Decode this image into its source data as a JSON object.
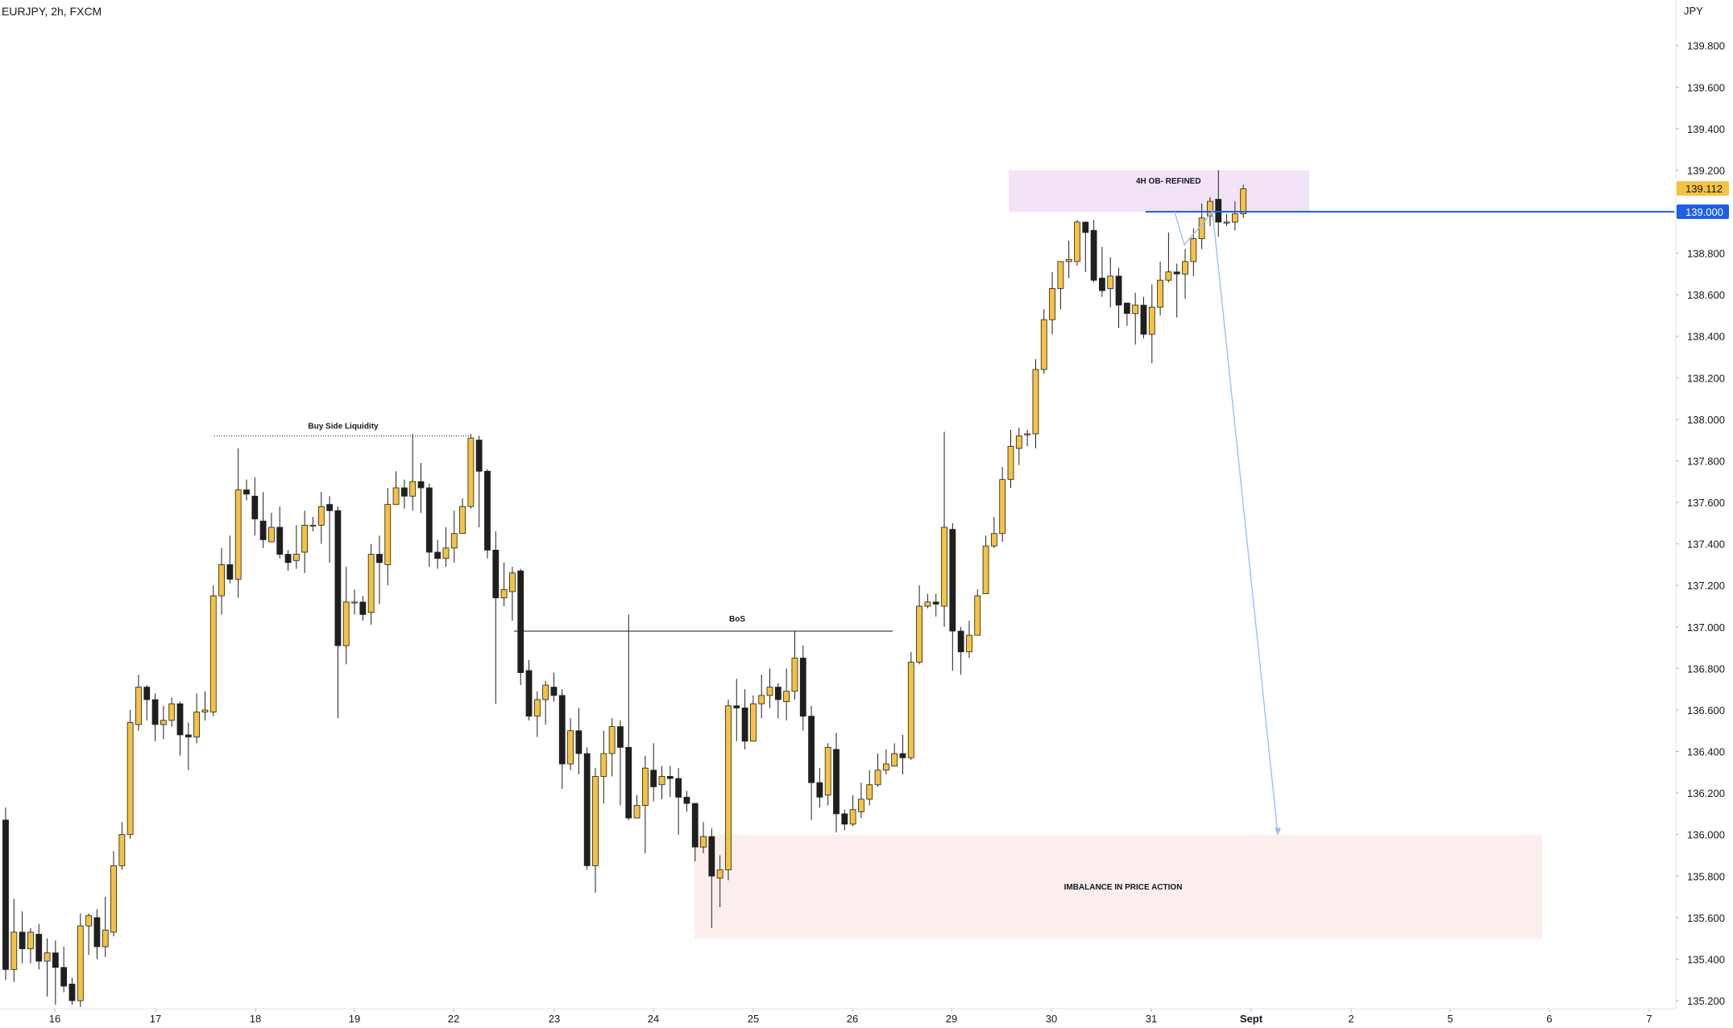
{
  "header": {
    "symbol_line": "EURJPY, 2h, FXCM"
  },
  "price_axis": {
    "currency": "JPY",
    "ticks": [
      "135.200",
      "135.400",
      "135.600",
      "135.800",
      "136.000",
      "136.200",
      "136.400",
      "136.600",
      "136.800",
      "137.000",
      "137.200",
      "137.400",
      "137.600",
      "137.800",
      "138.000",
      "138.200",
      "138.400",
      "138.600",
      "138.800",
      "139.000",
      "139.200",
      "139.400",
      "139.600",
      "139.800"
    ],
    "last_price_label": "139.112",
    "line_price_label": "139.000"
  },
  "time_axis": {
    "ticks": [
      "16",
      "17",
      "18",
      "19",
      "22",
      "23",
      "24",
      "25",
      "26",
      "29",
      "30",
      "31",
      "Sept",
      "2",
      "5",
      "6",
      "7"
    ],
    "bold": [
      "Sept"
    ]
  },
  "colors": {
    "up_candle": "#f5c242",
    "down_candle": "#1f1f1f",
    "wick": "#1f1f1f",
    "ob_zone": "#f3e3f7",
    "imbalance_zone": "#fdeeee",
    "blue_line": "#1e5fe6",
    "projection": "#9cc0f5",
    "last_price_bg": "#f5c242",
    "line_price_bg": "#1e5fe6"
  },
  "annotations": {
    "ob_label": "4H OB- REFINED",
    "imbalance_label": "IMBALANCE IN PRICE ACTION",
    "bos_label": "BoS",
    "bsl_label": "Buy Side Liquidity"
  },
  "chart_data": {
    "type": "candlestick",
    "symbol": "EURJPY",
    "timeframe": "2h",
    "source": "FXCM",
    "y_range": [
      135.15,
      140.02
    ],
    "x_ticks": [
      "16",
      "17",
      "18",
      "19",
      "22",
      "23",
      "24",
      "25",
      "26",
      "29",
      "30",
      "31",
      "Sept",
      "2",
      "5",
      "6",
      "7"
    ],
    "levels": {
      "bos": 136.98,
      "buy_side_liquidity": 137.92,
      "blue_line": 139.0
    },
    "zones": {
      "ob_4h_refined": [
        139.0,
        139.2
      ],
      "imbalance": [
        135.5,
        136.0
      ]
    },
    "projection_path": [
      139.0,
      138.84,
      139.0,
      136.0
    ],
    "candles": [
      [
        136.07,
        135.35,
        136.13,
        135.3
      ],
      [
        135.35,
        135.53,
        135.69,
        135.29
      ],
      [
        135.53,
        135.45,
        135.63,
        135.38
      ],
      [
        135.45,
        135.53,
        135.55,
        135.38
      ],
      [
        135.52,
        135.39,
        135.57,
        135.35
      ],
      [
        135.39,
        135.43,
        135.5,
        135.22
      ],
      [
        135.43,
        135.36,
        135.49,
        135.18
      ],
      [
        135.36,
        135.27,
        135.46,
        135.24
      ],
      [
        135.28,
        135.2,
        135.31,
        135.18
      ],
      [
        135.2,
        135.56,
        135.62,
        135.17
      ],
      [
        135.56,
        135.61,
        135.62,
        135.42
      ],
      [
        135.6,
        135.46,
        135.64,
        135.4
      ],
      [
        135.46,
        135.54,
        135.7,
        135.41
      ],
      [
        135.53,
        135.85,
        135.92,
        135.51
      ],
      [
        135.85,
        136.0,
        136.06,
        135.83
      ],
      [
        136.0,
        136.54,
        136.6,
        135.98
      ],
      [
        136.53,
        136.71,
        136.77,
        136.5
      ],
      [
        136.71,
        136.65,
        136.72,
        136.55
      ],
      [
        136.65,
        136.53,
        136.68,
        136.45
      ],
      [
        136.53,
        136.55,
        136.62,
        136.46
      ],
      [
        136.55,
        136.63,
        136.66,
        136.52
      ],
      [
        136.63,
        136.48,
        136.64,
        136.38
      ],
      [
        136.48,
        136.47,
        136.54,
        136.31
      ],
      [
        136.47,
        136.59,
        136.68,
        136.44
      ],
      [
        136.59,
        136.6,
        136.69,
        136.55
      ],
      [
        136.59,
        137.15,
        137.2,
        136.57
      ],
      [
        137.15,
        137.3,
        137.38,
        137.06
      ],
      [
        137.3,
        137.23,
        137.44,
        137.21
      ],
      [
        137.23,
        137.66,
        137.86,
        137.14
      ],
      [
        137.66,
        137.64,
        137.71,
        137.61
      ],
      [
        137.63,
        137.52,
        137.72,
        137.44
      ],
      [
        137.51,
        137.42,
        137.65,
        137.38
      ],
      [
        137.41,
        137.48,
        137.55,
        137.41
      ],
      [
        137.48,
        137.35,
        137.58,
        137.33
      ],
      [
        137.35,
        137.31,
        137.37,
        137.27
      ],
      [
        137.32,
        137.35,
        137.49,
        137.28
      ],
      [
        137.36,
        137.49,
        137.56,
        137.26
      ],
      [
        137.49,
        137.49,
        137.53,
        137.46
      ],
      [
        137.49,
        137.58,
        137.65,
        137.4
      ],
      [
        137.59,
        137.56,
        137.63,
        137.31
      ],
      [
        137.56,
        136.91,
        137.58,
        136.56
      ],
      [
        136.91,
        137.12,
        137.29,
        136.82
      ],
      [
        137.12,
        137.12,
        137.18,
        137.06
      ],
      [
        137.12,
        137.06,
        137.15,
        137.03
      ],
      [
        137.07,
        137.35,
        137.4,
        137.01
      ],
      [
        137.35,
        137.31,
        137.44,
        137.11
      ],
      [
        137.3,
        137.59,
        137.67,
        137.2
      ],
      [
        137.59,
        137.67,
        137.75,
        137.59
      ],
      [
        137.67,
        137.63,
        137.71,
        137.57
      ],
      [
        137.63,
        137.7,
        137.93,
        137.56
      ],
      [
        137.7,
        137.67,
        137.79,
        137.55
      ],
      [
        137.67,
        137.36,
        137.69,
        137.29
      ],
      [
        137.36,
        137.33,
        137.42,
        137.28
      ],
      [
        137.33,
        137.38,
        137.48,
        137.29
      ],
      [
        137.38,
        137.45,
        137.56,
        137.31
      ],
      [
        137.45,
        137.58,
        137.62,
        137.47
      ],
      [
        137.58,
        137.91,
        137.93,
        137.57
      ],
      [
        137.9,
        137.75,
        137.92,
        137.48
      ],
      [
        137.75,
        137.37,
        137.76,
        137.33
      ],
      [
        137.37,
        137.14,
        137.46,
        136.63
      ],
      [
        137.14,
        137.18,
        137.31,
        137.1
      ],
      [
        137.17,
        137.26,
        137.29,
        137.03
      ],
      [
        137.27,
        136.78,
        137.28,
        136.72
      ],
      [
        136.79,
        136.57,
        136.84,
        136.55
      ],
      [
        136.57,
        136.65,
        136.69,
        136.47
      ],
      [
        136.65,
        136.72,
        136.74,
        136.53
      ],
      [
        136.71,
        136.67,
        136.78,
        136.64
      ],
      [
        136.67,
        136.34,
        136.7,
        136.22
      ],
      [
        136.34,
        136.5,
        136.56,
        136.31
      ],
      [
        136.5,
        136.39,
        136.61,
        136.29
      ],
      [
        136.39,
        135.85,
        136.42,
        135.83
      ],
      [
        135.85,
        136.28,
        136.32,
        135.72
      ],
      [
        136.28,
        136.39,
        136.5,
        136.15
      ],
      [
        136.39,
        136.52,
        136.56,
        136.28
      ],
      [
        136.52,
        136.42,
        136.55,
        136.14
      ],
      [
        136.42,
        136.08,
        137.06,
        136.07
      ],
      [
        136.08,
        136.14,
        136.19,
        136.08
      ],
      [
        136.14,
        136.32,
        136.38,
        135.91
      ],
      [
        136.31,
        136.23,
        136.44,
        136.16
      ],
      [
        136.24,
        136.28,
        136.33,
        136.17
      ],
      [
        136.28,
        136.27,
        136.33,
        136.18
      ],
      [
        136.27,
        136.18,
        136.32,
        136.0
      ],
      [
        136.18,
        136.15,
        136.21,
        136.11
      ],
      [
        136.15,
        135.94,
        136.14,
        135.87
      ],
      [
        135.94,
        135.99,
        136.06,
        135.91
      ],
      [
        135.99,
        135.8,
        136.03,
        135.55
      ],
      [
        135.79,
        135.83,
        135.9,
        135.65
      ],
      [
        135.83,
        136.62,
        136.65,
        135.78
      ],
      [
        136.62,
        136.61,
        136.75,
        136.45
      ],
      [
        136.61,
        136.45,
        136.7,
        136.41
      ],
      [
        136.45,
        136.63,
        136.67,
        136.51
      ],
      [
        136.63,
        136.67,
        136.77,
        136.56
      ],
      [
        136.67,
        136.71,
        136.8,
        136.61
      ],
      [
        136.71,
        136.65,
        136.73,
        136.56
      ],
      [
        136.64,
        136.69,
        136.8,
        136.55
      ],
      [
        136.69,
        136.85,
        136.98,
        136.65
      ],
      [
        136.85,
        136.57,
        136.91,
        136.5
      ],
      [
        136.57,
        136.25,
        136.62,
        136.07
      ],
      [
        136.25,
        136.18,
        136.32,
        136.13
      ],
      [
        136.19,
        136.42,
        136.44,
        136.14
      ],
      [
        136.41,
        136.1,
        136.49,
        136.01
      ],
      [
        136.1,
        136.05,
        136.12,
        136.02
      ],
      [
        136.05,
        136.12,
        136.19,
        136.04
      ],
      [
        136.11,
        136.17,
        136.25,
        136.08
      ],
      [
        136.17,
        136.24,
        136.31,
        136.14
      ],
      [
        136.24,
        136.31,
        136.39,
        136.23
      ],
      [
        136.31,
        136.34,
        136.41,
        136.29
      ],
      [
        136.33,
        136.39,
        136.44,
        136.33
      ],
      [
        136.39,
        136.37,
        136.48,
        136.29
      ],
      [
        136.37,
        136.83,
        136.88,
        136.36
      ],
      [
        136.83,
        137.1,
        137.2,
        136.82
      ],
      [
        137.1,
        137.12,
        137.16,
        137.09
      ],
      [
        137.12,
        137.11,
        137.16,
        137.05
      ],
      [
        137.1,
        137.48,
        137.94,
        137.0
      ],
      [
        137.47,
        136.98,
        137.5,
        136.79
      ],
      [
        136.98,
        136.88,
        137.0,
        136.77
      ],
      [
        136.88,
        136.96,
        137.03,
        136.85
      ],
      [
        136.96,
        137.15,
        137.18,
        137.08
      ],
      [
        137.16,
        137.39,
        137.44,
        137.16
      ],
      [
        137.39,
        137.45,
        137.53,
        137.38
      ],
      [
        137.45,
        137.71,
        137.77,
        137.41
      ],
      [
        137.71,
        137.87,
        137.95,
        137.67
      ],
      [
        137.86,
        137.92,
        137.96,
        137.78
      ],
      [
        137.93,
        137.93,
        137.95,
        137.87
      ],
      [
        137.93,
        138.24,
        138.29,
        137.86
      ],
      [
        138.24,
        138.48,
        138.53,
        138.22
      ],
      [
        138.48,
        138.63,
        138.71,
        138.41
      ],
      [
        138.63,
        138.76,
        138.74,
        138.53
      ],
      [
        138.76,
        138.77,
        138.86,
        138.68
      ],
      [
        138.76,
        138.95,
        138.96,
        138.74
      ],
      [
        138.95,
        138.9,
        138.93,
        138.71
      ],
      [
        138.91,
        138.67,
        138.96,
        138.66
      ],
      [
        138.68,
        138.62,
        138.83,
        138.59
      ],
      [
        138.63,
        138.69,
        138.78,
        138.54
      ],
      [
        138.69,
        138.55,
        138.73,
        138.44
      ],
      [
        138.56,
        138.51,
        138.55,
        138.45
      ],
      [
        138.51,
        138.55,
        138.61,
        138.36
      ],
      [
        138.55,
        138.41,
        138.59,
        138.39
      ],
      [
        138.41,
        138.54,
        138.65,
        138.27
      ],
      [
        138.54,
        138.67,
        138.76,
        138.5
      ],
      [
        138.67,
        138.71,
        138.9,
        138.66
      ],
      [
        138.71,
        138.7,
        138.75,
        138.49
      ],
      [
        138.7,
        138.76,
        138.82,
        138.58
      ],
      [
        138.76,
        138.87,
        138.92,
        138.69
      ],
      [
        138.87,
        138.97,
        139.04,
        138.82
      ],
      [
        138.98,
        139.05,
        139.07,
        138.93
      ],
      [
        139.06,
        138.95,
        139.2,
        138.88
      ],
      [
        138.95,
        138.95,
        138.99,
        138.93
      ],
      [
        138.95,
        138.99,
        139.05,
        138.91
      ],
      [
        138.99,
        139.11,
        139.13,
        138.97
      ]
    ]
  }
}
